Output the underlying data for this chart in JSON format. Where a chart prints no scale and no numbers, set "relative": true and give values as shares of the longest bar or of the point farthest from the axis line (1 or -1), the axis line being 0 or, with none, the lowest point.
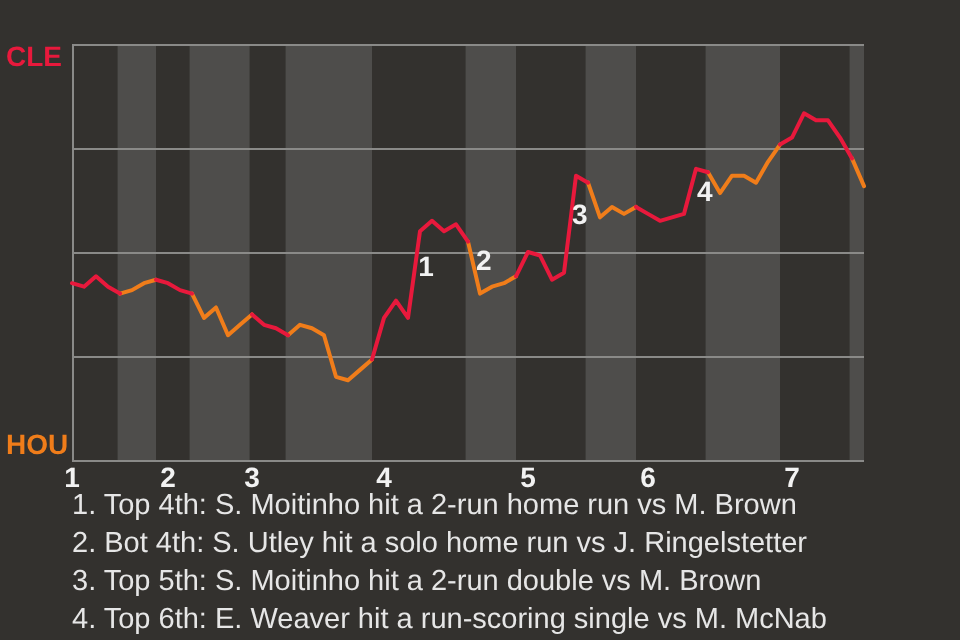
{
  "chart_data": {
    "type": "line",
    "relative": true,
    "categories": [
      "1",
      null,
      null,
      null,
      null,
      null,
      null,
      null,
      "2",
      null,
      null,
      null,
      null,
      null,
      null,
      "3",
      null,
      null,
      null,
      null,
      null,
      null,
      null,
      null,
      null,
      null,
      "4",
      null,
      null,
      null,
      null,
      null,
      null,
      null,
      null,
      null,
      null,
      null,
      "5",
      null,
      null,
      null,
      null,
      null,
      null,
      null,
      null,
      null,
      "6",
      null,
      null,
      null,
      null,
      null,
      null,
      null,
      null,
      null,
      null,
      null,
      "7",
      null,
      null,
      null,
      null,
      null,
      null
    ],
    "grid": "y",
    "legend": false,
    "series": [
      {
        "color": "#e8193c",
        "values": [
          0.51,
          0.5,
          0.53,
          0.5,
          0.48,
          null,
          null,
          0.52,
          0.51,
          0.49,
          0.48,
          null,
          null,
          null,
          null,
          0.42,
          0.39,
          0.38,
          0.36,
          null,
          null,
          null,
          null,
          null,
          null,
          0.29,
          0.41,
          0.46,
          0.41,
          0.66,
          0.69,
          0.66,
          0.68,
          0.63,
          null,
          null,
          null,
          0.53,
          0.6,
          0.59,
          0.52,
          0.54,
          0.82,
          0.8,
          null,
          null,
          null,
          0.73,
          0.71,
          0.69,
          0.7,
          0.71,
          0.84,
          0.83,
          null,
          null,
          null,
          null,
          null,
          0.91,
          0.93,
          1,
          0.98,
          0.98,
          0.93,
          0.87,
          null
        ]
      },
      {
        "color": "#f07d1a",
        "values": [
          null,
          null,
          null,
          null,
          0.48,
          0.49,
          0.51,
          0.52,
          null,
          null,
          0.48,
          0.41,
          0.44,
          0.36,
          0.39,
          0.42,
          null,
          null,
          0.36,
          0.39,
          0.38,
          0.36,
          0.24,
          0.23,
          0.26,
          0.29,
          null,
          null,
          null,
          null,
          null,
          null,
          null,
          0.63,
          0.48,
          0.5,
          0.51,
          0.53,
          null,
          null,
          null,
          null,
          null,
          0.8,
          0.7,
          0.73,
          0.71,
          0.73,
          null,
          null,
          null,
          null,
          null,
          0.83,
          0.77,
          0.82,
          0.82,
          0.8,
          0.86,
          0.91,
          null,
          null,
          null,
          null,
          null,
          0.87,
          0.79
        ]
      }
    ],
    "annotations": [
      "CLE",
      "HOU",
      "1",
      "2",
      "3",
      "4",
      "1. Top 4th: S. Moitinho hit a 2-run home run vs M. Brown",
      "2. Bot 4th: S. Utley hit a solo home run vs J. Ringelstetter",
      "3. Top 5th: S. Moitinho hit a 2-run double vs M. Brown",
      "4. Top 6th: E. Weaver hit a run-scoring single vs M. McNab"
    ]
  }
}
